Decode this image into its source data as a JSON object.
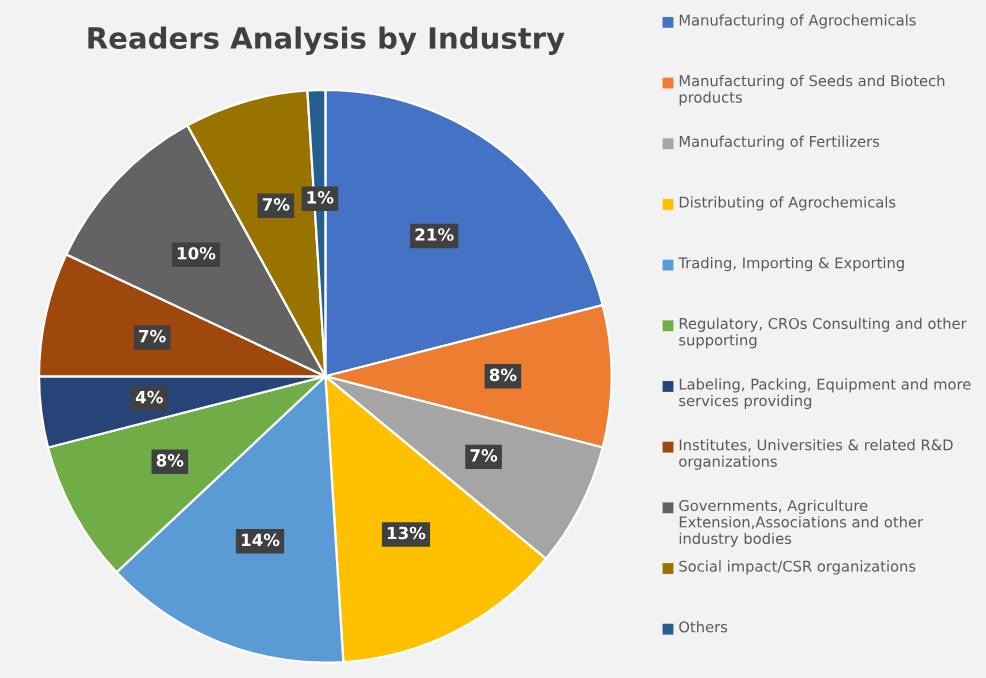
{
  "chart_data": {
    "type": "pie",
    "title": "Readers Analysis by Industry",
    "categories": [
      "Manufacturing of Agrochemicals",
      "Manufacturing of Seeds and Biotech products",
      "Manufacturing of Fertilizers",
      "Distributing of Agrochemicals",
      "Trading, Importing & Exporting",
      "Regulatory, CROs Consulting and other supporting",
      "Labeling, Packing, Equipment and more services providing",
      "Institutes, Universities & related R&D organizations",
      "Governments, Agriculture Extension,Associations and other industry bodies",
      "Social impact/CSR organizations",
      "Others"
    ],
    "values": [
      21,
      8,
      7,
      13,
      14,
      8,
      4,
      7,
      10,
      7,
      1
    ],
    "value_labels": [
      "21%",
      "8%",
      "7%",
      "13%",
      "14%",
      "8%",
      "4%",
      "7%",
      "10%",
      "7%",
      "1%"
    ],
    "colors": [
      "#4472c4",
      "#ed7d31",
      "#a5a5a5",
      "#ffc000",
      "#5b9bd5",
      "#70ad47",
      "#264478",
      "#9e480e",
      "#636363",
      "#997300",
      "#255e91"
    ],
    "legend": "right"
  }
}
